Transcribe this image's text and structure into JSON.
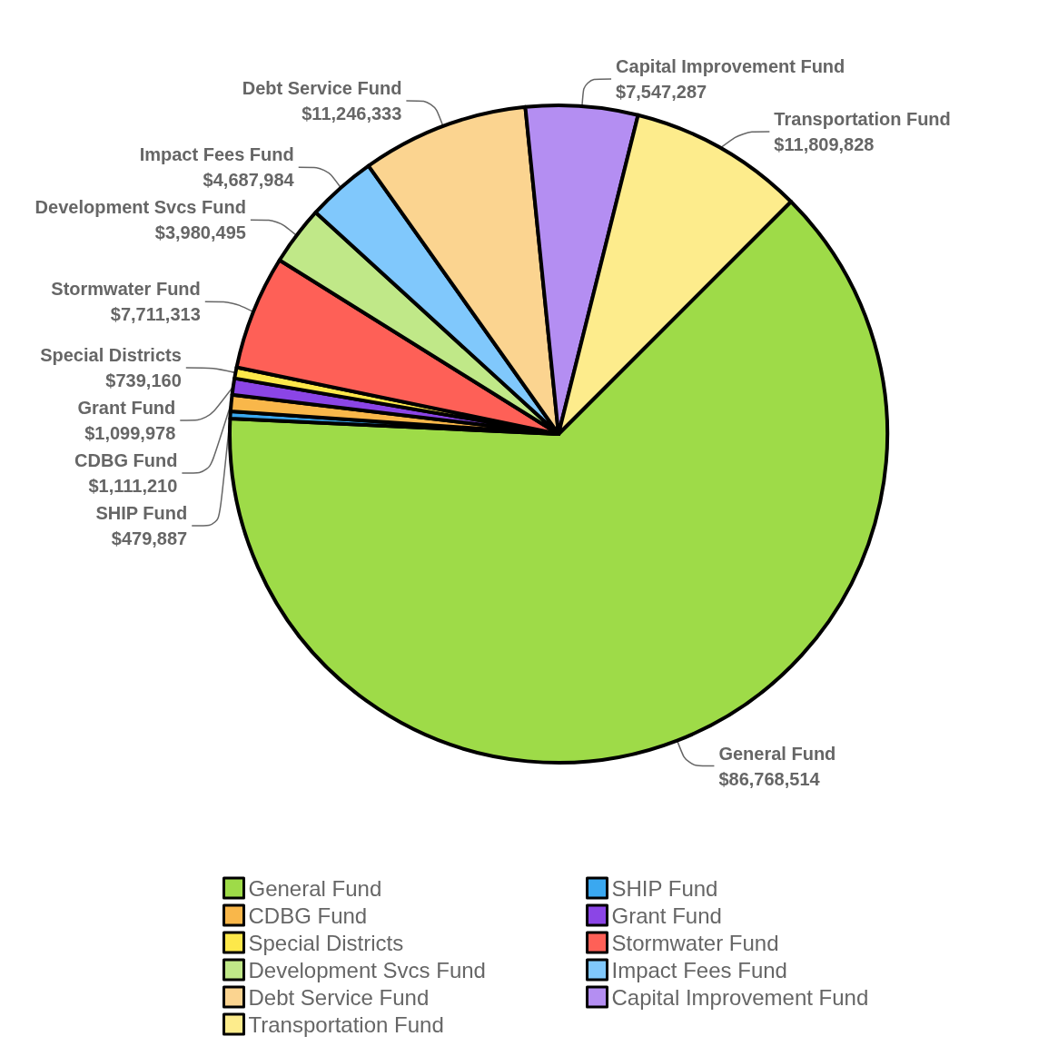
{
  "chart_data": {
    "type": "pie",
    "categories": [
      "General Fund",
      "SHIP Fund",
      "CDBG Fund",
      "Grant Fund",
      "Special Districts",
      "Stormwater Fund",
      "Development Svcs Fund",
      "Impact Fees Fund",
      "Debt Service Fund",
      "Capital Improvement Fund",
      "Transportation Fund"
    ],
    "values": [
      86768514,
      479887,
      1111210,
      1099978,
      739160,
      7711313,
      3980495,
      4687984,
      11246333,
      7547287,
      11809828
    ],
    "value_labels": [
      "$86,768,514",
      "$479,887",
      "$1,111,210",
      "$1,099,978",
      "$739,160",
      "$7,711,313",
      "$3,980,495",
      "$4,687,984",
      "$11,246,333",
      "$7,547,287",
      "$11,809,828"
    ],
    "colors": [
      "#9edb48",
      "#3aa8f0",
      "#f9b74a",
      "#8b45e6",
      "#fde84a",
      "#fe6057",
      "#c0e888",
      "#80c8fc",
      "#fbd490",
      "#b48ef2",
      "#fdec8c"
    ],
    "legend": "bottom"
  }
}
